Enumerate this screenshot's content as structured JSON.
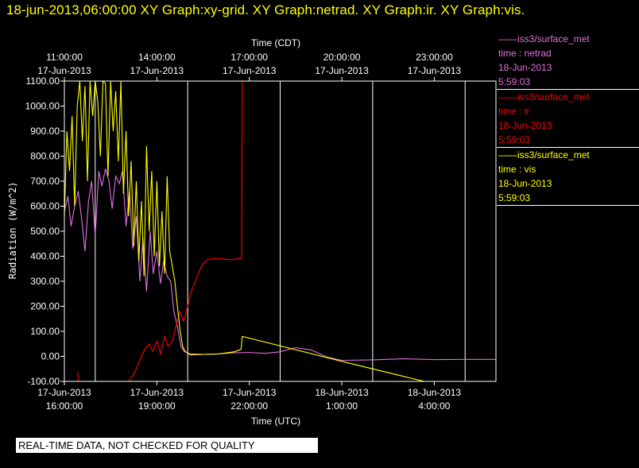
{
  "header": {
    "title": "18-jun-2013,06:00:00  XY Graph:xy-grid.  XY Graph:netrad.  XY Graph:ir.  XY Graph:vis."
  },
  "colors": {
    "background": "#000000",
    "axes": "#ffffff",
    "netrad": "#e070e0",
    "ir": "#ff0000",
    "vis": "#ffff00"
  },
  "legend": [
    {
      "lines": [
        "——iss3/surface_met",
        "time : netrad",
        "18-Jun-2013",
        "5:59:03"
      ],
      "color": "#e070e0"
    },
    {
      "lines": [
        "——iss3/surface_met",
        "time : ir",
        "18-Jun-2013",
        "5:59:03"
      ],
      "color": "#ff0000"
    },
    {
      "lines": [
        "——iss3/surface_met",
        "time : vis",
        "18-Jun-2013",
        "5:59:03"
      ],
      "color": "#ffff00"
    }
  ],
  "quality_banner": "REAL-TIME DATA, NOT CHECKED FOR QUALITY",
  "chart_data": {
    "type": "line",
    "title": "",
    "xlabel_bottom": "Time (UTC)",
    "xlabel_top": "Time (CDT)",
    "ylabel": "Radiation (W/m^2)",
    "xlim_utc": [
      "2013-06-17 16:00",
      "2013-06-18 06:00"
    ],
    "ylim": [
      -100,
      1100
    ],
    "grid": "vertical",
    "yticks": [
      -100,
      0,
      100,
      200,
      300,
      400,
      500,
      600,
      700,
      800,
      900,
      1000,
      1100
    ],
    "ytick_labels": [
      "-100.00",
      "0.00",
      "100.00",
      "200.00",
      "300.00",
      "400.00",
      "500.00",
      "600.00",
      "700.00",
      "800.00",
      "900.00",
      "1000.00",
      "1100.00"
    ],
    "xticks_bottom": [
      {
        "t": "2013-06-17 16:00",
        "date": "17-Jun-2013",
        "time": "16:00:00"
      },
      {
        "t": "2013-06-17 19:00",
        "date": "17-Jun-2013",
        "time": "19:00:00"
      },
      {
        "t": "2013-06-17 22:00",
        "date": "17-Jun-2013",
        "time": "22:00:00"
      },
      {
        "t": "2013-06-18 01:00",
        "date": "18-Jun-2013",
        "time": "1:00:00"
      },
      {
        "t": "2013-06-18 04:00",
        "date": "18-Jun-2013",
        "time": "4:00:00"
      }
    ],
    "xticks_top": [
      {
        "t": "2013-06-17 11:00",
        "date": "17-Jun-2013",
        "time": "11:00:00"
      },
      {
        "t": "2013-06-17 14:00",
        "date": "17-Jun-2013",
        "time": "14:00:00"
      },
      {
        "t": "2013-06-17 17:00",
        "date": "17-Jun-2013",
        "time": "17:00:00"
      },
      {
        "t": "2013-06-17 20:00",
        "date": "17-Jun-2013",
        "time": "20:00:00"
      },
      {
        "t": "2013-06-17 23:00",
        "date": "17-Jun-2013",
        "time": "23:00:00"
      }
    ],
    "series": [
      {
        "name": "netrad",
        "color": "#e070e0",
        "points": [
          [
            "2013-06-17 16:00",
            580
          ],
          [
            "2013-06-17 16:07",
            640
          ],
          [
            "2013-06-17 16:13",
            520
          ],
          [
            "2013-06-17 16:20",
            600
          ],
          [
            "2013-06-17 16:27",
            660
          ],
          [
            "2013-06-17 16:33",
            560
          ],
          [
            "2013-06-17 16:40",
            420
          ],
          [
            "2013-06-17 16:47",
            620
          ],
          [
            "2013-06-17 16:53",
            700
          ],
          [
            "2013-06-17 17:00",
            480
          ],
          [
            "2013-06-17 17:07",
            740
          ],
          [
            "2013-06-17 17:13",
            680
          ],
          [
            "2013-06-17 17:20",
            750
          ],
          [
            "2013-06-17 17:27",
            700
          ],
          [
            "2013-06-17 17:33",
            590
          ],
          [
            "2013-06-17 17:40",
            720
          ],
          [
            "2013-06-17 17:47",
            690
          ],
          [
            "2013-06-17 17:53",
            740
          ],
          [
            "2013-06-17 18:00",
            520
          ],
          [
            "2013-06-17 18:07",
            660
          ],
          [
            "2013-06-17 18:13",
            430
          ],
          [
            "2013-06-17 18:20",
            560
          ],
          [
            "2013-06-17 18:27",
            300
          ],
          [
            "2013-06-17 18:33",
            470
          ],
          [
            "2013-06-17 18:40",
            260
          ],
          [
            "2013-06-17 18:47",
            500
          ],
          [
            "2013-06-17 18:53",
            330
          ],
          [
            "2013-06-17 19:00",
            420
          ],
          [
            "2013-06-17 19:07",
            290
          ],
          [
            "2013-06-17 19:13",
            380
          ],
          [
            "2013-06-17 19:20",
            320
          ],
          [
            "2013-06-17 19:27",
            300
          ],
          [
            "2013-06-17 19:33",
            180
          ],
          [
            "2013-06-17 19:40",
            120
          ],
          [
            "2013-06-17 19:47",
            40
          ],
          [
            "2013-06-17 19:53",
            20
          ],
          [
            "2013-06-17 20:05",
            10
          ],
          [
            "2013-06-17 20:30",
            8
          ],
          [
            "2013-06-17 21:00",
            10
          ],
          [
            "2013-06-17 21:30",
            14
          ],
          [
            "2013-06-17 22:00",
            16
          ],
          [
            "2013-06-17 22:30",
            12
          ],
          [
            "2013-06-17 23:00",
            18
          ],
          [
            "2013-06-17 23:30",
            35
          ],
          [
            "2013-06-18 00:00",
            26
          ],
          [
            "2013-06-18 00:30",
            -2
          ],
          [
            "2013-06-18 01:00",
            -16
          ],
          [
            "2013-06-18 02:00",
            -14
          ],
          [
            "2013-06-18 03:00",
            -10
          ],
          [
            "2013-06-18 04:00",
            -13
          ],
          [
            "2013-06-18 05:00",
            -12
          ],
          [
            "2013-06-18 05:59",
            -12
          ]
        ]
      },
      {
        "name": "ir",
        "color": "#ff0000",
        "points": [
          [
            "2013-06-17 16:26",
            -60
          ],
          [
            "2013-06-17 16:27",
            -100
          ],
          [
            "2013-06-17 18:05",
            -100
          ],
          [
            "2013-06-17 18:15",
            -70
          ],
          [
            "2013-06-17 18:22",
            -40
          ],
          [
            "2013-06-17 18:30",
            0
          ],
          [
            "2013-06-17 18:37",
            30
          ],
          [
            "2013-06-17 18:45",
            50
          ],
          [
            "2013-06-17 18:52",
            20
          ],
          [
            "2013-06-17 19:00",
            60
          ],
          [
            "2013-06-17 19:07",
            10
          ],
          [
            "2013-06-17 19:15",
            80
          ],
          [
            "2013-06-17 19:22",
            40
          ],
          [
            "2013-06-17 19:30",
            60
          ],
          [
            "2013-06-17 19:37",
            120
          ],
          [
            "2013-06-17 19:45",
            180
          ],
          [
            "2013-06-17 19:52",
            140
          ],
          [
            "2013-06-17 20:00",
            200
          ],
          [
            "2013-06-17 20:07",
            260
          ],
          [
            "2013-06-17 20:15",
            300
          ],
          [
            "2013-06-17 20:22",
            340
          ],
          [
            "2013-06-17 20:30",
            370
          ],
          [
            "2013-06-17 20:40",
            388
          ],
          [
            "2013-06-17 21:00",
            392
          ],
          [
            "2013-06-17 21:20",
            386
          ],
          [
            "2013-06-17 21:40",
            390
          ],
          [
            "2013-06-17 21:45",
            390
          ],
          [
            "2013-06-17 21:46",
            1100
          ]
        ]
      },
      {
        "name": "vis",
        "color": "#ffff00",
        "points": [
          [
            "2013-06-17 16:00",
            560
          ],
          [
            "2013-06-17 16:05",
            900
          ],
          [
            "2013-06-17 16:10",
            740
          ],
          [
            "2013-06-17 16:15",
            960
          ],
          [
            "2013-06-17 16:20",
            600
          ],
          [
            "2013-06-17 16:25",
            1000
          ],
          [
            "2013-06-17 16:30",
            1100
          ],
          [
            "2013-06-17 16:35",
            860
          ],
          [
            "2013-06-17 16:40",
            1080
          ],
          [
            "2013-06-17 16:45",
            700
          ],
          [
            "2013-06-17 16:50",
            1100
          ],
          [
            "2013-06-17 16:55",
            960
          ],
          [
            "2013-06-17 17:00",
            1100
          ],
          [
            "2013-06-17 17:05",
            1020
          ],
          [
            "2013-06-17 17:10",
            800
          ],
          [
            "2013-06-17 17:15",
            1100
          ],
          [
            "2013-06-17 17:20",
            1090
          ],
          [
            "2013-06-17 17:25",
            720
          ],
          [
            "2013-06-17 17:30",
            1100
          ],
          [
            "2013-06-17 17:35",
            900
          ],
          [
            "2013-06-17 17:40",
            1060
          ],
          [
            "2013-06-17 17:45",
            780
          ],
          [
            "2013-06-17 17:50",
            1100
          ],
          [
            "2013-06-17 17:55",
            650
          ],
          [
            "2013-06-17 18:00",
            900
          ],
          [
            "2013-06-17 18:05",
            560
          ],
          [
            "2013-06-17 18:10",
            780
          ],
          [
            "2013-06-17 18:15",
            440
          ],
          [
            "2013-06-17 18:20",
            700
          ],
          [
            "2013-06-17 18:25",
            380
          ],
          [
            "2013-06-17 18:30",
            620
          ],
          [
            "2013-06-17 18:35",
            320
          ],
          [
            "2013-06-17 18:40",
            840
          ],
          [
            "2013-06-17 18:45",
            500
          ],
          [
            "2013-06-17 18:50",
            740
          ],
          [
            "2013-06-17 18:55",
            400
          ],
          [
            "2013-06-17 19:00",
            700
          ],
          [
            "2013-06-17 19:05",
            360
          ],
          [
            "2013-06-17 19:10",
            580
          ],
          [
            "2013-06-17 19:15",
            330
          ],
          [
            "2013-06-17 19:20",
            720
          ],
          [
            "2013-06-17 19:25",
            420
          ],
          [
            "2013-06-17 19:30",
            360
          ],
          [
            "2013-06-17 19:35",
            300
          ],
          [
            "2013-06-17 19:40",
            200
          ],
          [
            "2013-06-17 19:45",
            110
          ],
          [
            "2013-06-17 19:50",
            40
          ],
          [
            "2013-06-17 19:55",
            20
          ],
          [
            "2013-06-17 20:05",
            6
          ],
          [
            "2013-06-17 20:30",
            8
          ],
          [
            "2013-06-17 21:00",
            10
          ],
          [
            "2013-06-17 21:30",
            18
          ],
          [
            "2013-06-17 21:44",
            28
          ],
          [
            "2013-06-17 21:46",
            80
          ],
          [
            "2013-06-18 01:00",
            -20
          ],
          [
            "2013-06-18 04:00",
            -110
          ]
        ]
      }
    ]
  }
}
